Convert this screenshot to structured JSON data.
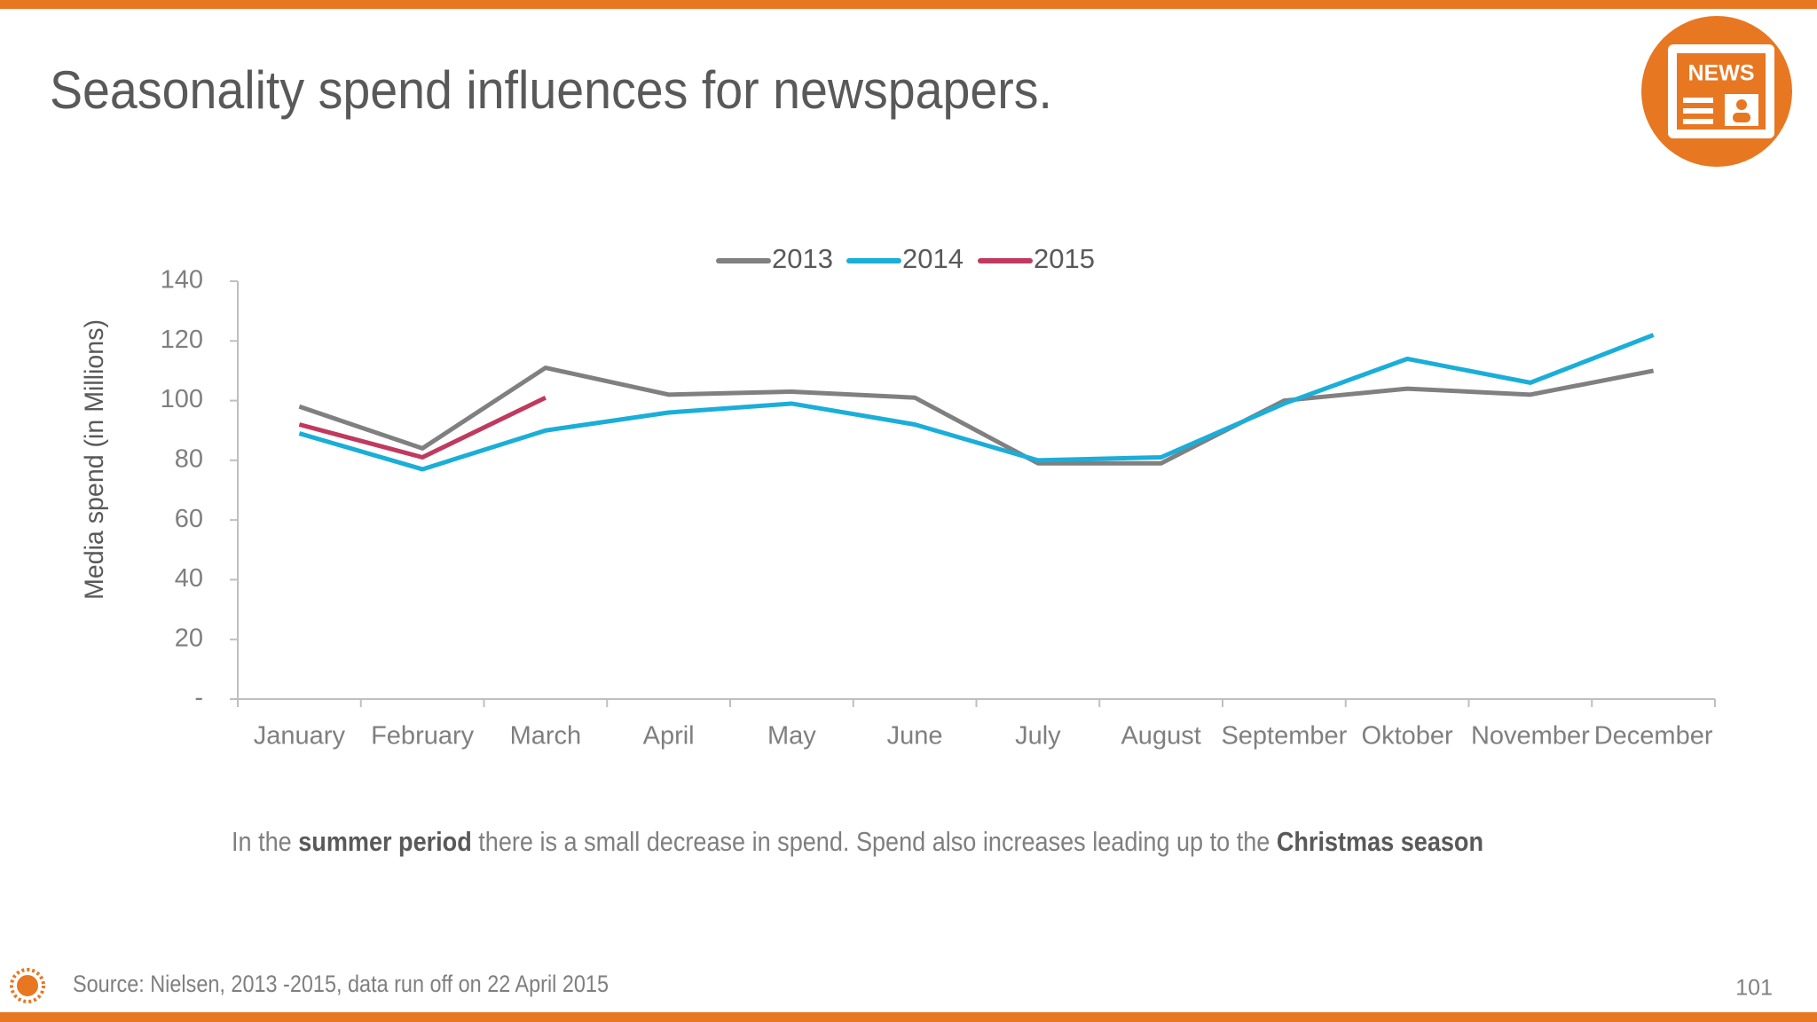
{
  "chart_data": {
    "type": "line",
    "title": "Seasonality spend influences for newspapers.",
    "y_label": "Media spend (in Millions)",
    "categories": [
      "January",
      "February",
      "March",
      "April",
      "May",
      "June",
      "July",
      "August",
      "September",
      "Oktober",
      "November",
      "December"
    ],
    "series": [
      {
        "name": "2013",
        "color": "#808080",
        "values": [
          98,
          84,
          111,
          102,
          103,
          101,
          79,
          79,
          100,
          104,
          102,
          110
        ]
      },
      {
        "name": "2014",
        "color": "#1aaed8",
        "values": [
          89,
          77,
          90,
          96,
          99,
          92,
          80,
          81,
          99,
          114,
          106,
          122
        ]
      },
      {
        "name": "2015",
        "color": "#c0395f",
        "values": [
          92,
          81,
          101,
          null,
          null,
          null,
          null,
          null,
          null,
          null,
          null,
          null
        ]
      }
    ],
    "ylim": [
      0,
      140
    ],
    "yticks": [
      {
        "value": 0,
        "label": "-"
      },
      20,
      40,
      60,
      80,
      100,
      120,
      140
    ],
    "grid": false,
    "legend": "top",
    "note": {
      "parts": [
        "In the ",
        "summer period",
        " there is a small decrease in spend. Spend also increases leading up to the ",
        "Christmas season"
      ],
      "bold": [
        false,
        true,
        false,
        true
      ]
    },
    "source": "Source: Nielsen, 2013 -2015, data run off on 22 April 2015",
    "page_number": "101",
    "icon_text": "NEWS"
  }
}
